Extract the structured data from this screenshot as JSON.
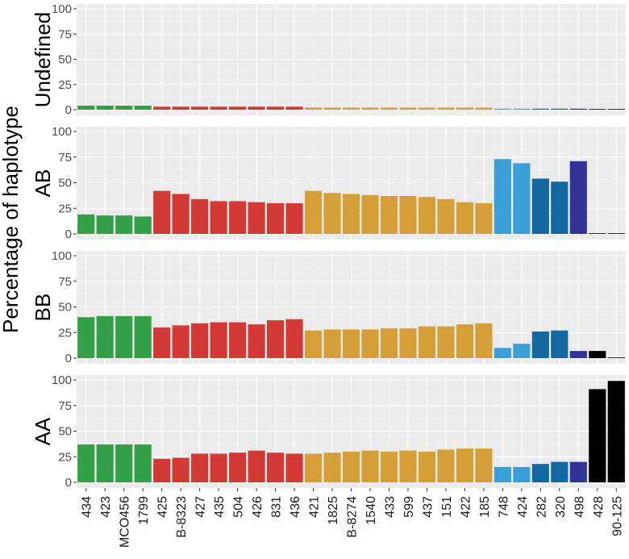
{
  "chart_data": {
    "type": "bar",
    "layout": "faceted-vertical",
    "ylabel": "Percentage of haplotype",
    "xlabel": "",
    "ylim": [
      0,
      100
    ],
    "yticks": [
      0,
      25,
      50,
      75,
      100
    ],
    "grid": true,
    "categories": [
      "434",
      "423",
      "MCO456",
      "1799",
      "425",
      "B-8323",
      "427",
      "435",
      "504",
      "426",
      "831",
      "436",
      "421",
      "1825",
      "B-8274",
      "1540",
      "433",
      "599",
      "437",
      "151",
      "422",
      "185",
      "748",
      "424",
      "282",
      "320",
      "498",
      "428",
      "90-125"
    ],
    "category_colors": [
      "#33a047",
      "#33a047",
      "#33a047",
      "#33a047",
      "#d43a35",
      "#d43a35",
      "#d43a35",
      "#d43a35",
      "#d43a35",
      "#d43a35",
      "#d43a35",
      "#d43a35",
      "#d59e36",
      "#d59e36",
      "#d59e36",
      "#d59e36",
      "#d59e36",
      "#d59e36",
      "#d59e36",
      "#d59e36",
      "#d59e36",
      "#d59e36",
      "#3a9fd7",
      "#3a9fd7",
      "#13689f",
      "#13689f",
      "#333397",
      "#000000",
      "#000000"
    ],
    "panels": [
      {
        "name": "Undefined",
        "values": [
          4,
          4,
          4,
          4,
          3,
          3,
          3,
          3,
          3,
          3,
          3,
          3,
          2,
          2,
          2,
          2,
          2,
          2,
          2,
          2,
          2,
          2,
          1,
          1,
          1,
          1,
          1,
          0.5,
          0
        ]
      },
      {
        "name": "AB",
        "values": [
          19,
          18,
          18,
          17,
          42,
          39,
          34,
          32,
          32,
          31,
          30,
          30,
          42,
          40,
          39,
          38,
          37,
          37,
          36,
          34,
          31,
          30,
          73,
          69,
          54,
          51,
          71,
          0.5,
          0.5
        ]
      },
      {
        "name": "BB",
        "values": [
          40,
          41,
          41,
          41,
          30,
          32,
          34,
          35,
          35,
          33,
          37,
          38,
          27,
          28,
          28,
          28,
          29,
          29,
          31,
          31,
          33,
          34,
          10,
          14,
          26,
          27,
          7,
          7,
          0
        ]
      },
      {
        "name": "AA",
        "values": [
          37,
          37,
          37,
          37,
          23,
          24,
          28,
          28,
          29,
          31,
          29,
          28,
          28,
          29,
          30,
          31,
          30,
          31,
          30,
          32,
          33,
          33,
          15,
          15,
          18,
          20,
          20,
          91,
          99
        ]
      }
    ]
  }
}
